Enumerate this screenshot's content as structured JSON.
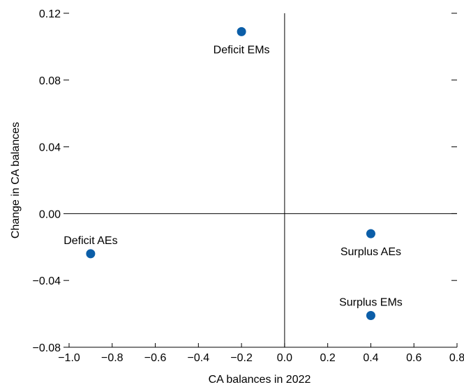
{
  "chart_data": {
    "type": "scatter",
    "xlabel": "CA balances in 2022",
    "ylabel": "Change in CA balances",
    "xlim": [
      -1.0,
      0.8
    ],
    "ylim": [
      -0.08,
      0.12
    ],
    "x_ticks": [
      "−1.0",
      "−0.8",
      "−0.6",
      "−0.4",
      "−0.2",
      "0.0",
      "0.2",
      "0.4",
      "0.6",
      "0.8"
    ],
    "y_ticks": [
      "−0.08",
      "−0.04",
      "0.00",
      "0.04",
      "0.08",
      "0.12"
    ],
    "grid": false,
    "point_color": "#0b5ea8",
    "points": [
      {
        "label": "Deficit EMs",
        "x": -0.2,
        "y": 0.109,
        "label_position": "below"
      },
      {
        "label": "Deficit AEs",
        "x": -0.9,
        "y": -0.024,
        "label_position": "above"
      },
      {
        "label": "Surplus AEs",
        "x": 0.4,
        "y": -0.012,
        "label_position": "below"
      },
      {
        "label": "Surplus EMs",
        "x": 0.4,
        "y": -0.061,
        "label_position": "above"
      }
    ]
  }
}
